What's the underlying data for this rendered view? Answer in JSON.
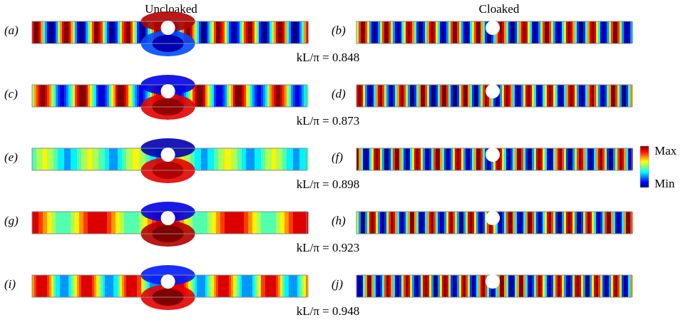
{
  "headings": {
    "left": "Uncloaked",
    "right": "Cloaked"
  },
  "rows": [
    {
      "left_label": "(a)",
      "right_label": "(b)",
      "caption": "kL/π = 0.848"
    },
    {
      "left_label": "(c)",
      "right_label": "(d)",
      "caption": "kL/π = 0.873"
    },
    {
      "left_label": "(e)",
      "right_label": "(f)",
      "caption": "kL/π = 0.898"
    },
    {
      "left_label": "(g)",
      "right_label": "(h)",
      "caption": "kL/π = 0.923"
    },
    {
      "left_label": "(i)",
      "right_label": "(j)",
      "caption": "kL/π = 0.948"
    }
  ],
  "colorbar": {
    "max": "Max",
    "min": "Min"
  }
}
